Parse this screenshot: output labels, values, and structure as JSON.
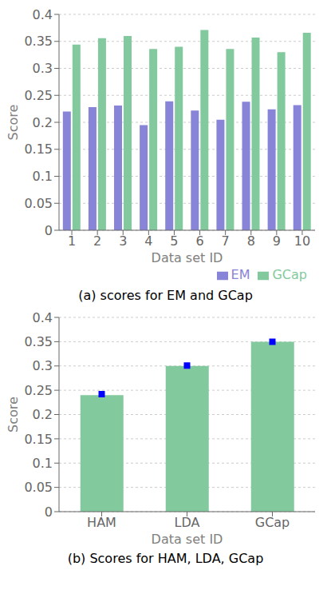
{
  "chart_data": [
    {
      "type": "bar",
      "title": "(a) scores for EM and GCap",
      "x_label": "Data set ID",
      "y_label": "Score",
      "categories": [
        "1",
        "2",
        "3",
        "4",
        "5",
        "6",
        "7",
        "8",
        "9",
        "10"
      ],
      "series": [
        {
          "name": "EM",
          "color": "#8884d8",
          "values": [
            0.22,
            0.228,
            0.231,
            0.195,
            0.239,
            0.222,
            0.205,
            0.238,
            0.224,
            0.232
          ]
        },
        {
          "name": "GCap",
          "color": "#82ca9d",
          "values": [
            0.344,
            0.356,
            0.36,
            0.336,
            0.34,
            0.371,
            0.336,
            0.357,
            0.33,
            0.366
          ]
        }
      ],
      "ylim": [
        0,
        0.4
      ],
      "yticks": [
        0,
        0.05,
        0.1,
        0.15,
        0.2,
        0.25,
        0.3,
        0.35,
        0.4
      ],
      "legend": "lower right"
    },
    {
      "type": "bar",
      "title": "(b) Scores for HAM, LDA, GCap",
      "x_label": "Data set ID",
      "y_label": "Score",
      "categories": [
        "HAM",
        "LDA",
        "GCap"
      ],
      "series": [
        {
          "type": "bar",
          "color": "#82ca9d",
          "values": [
            0.24,
            0.3,
            0.35
          ]
        },
        {
          "type": "scatter",
          "marker": "square",
          "color": "#0000ff",
          "values": [
            0.242,
            0.301,
            0.35
          ]
        }
      ],
      "ylim": [
        0,
        0.4
      ],
      "yticks": [
        0,
        0.05,
        0.1,
        0.15,
        0.2,
        0.25,
        0.3,
        0.35,
        0.4
      ]
    }
  ]
}
